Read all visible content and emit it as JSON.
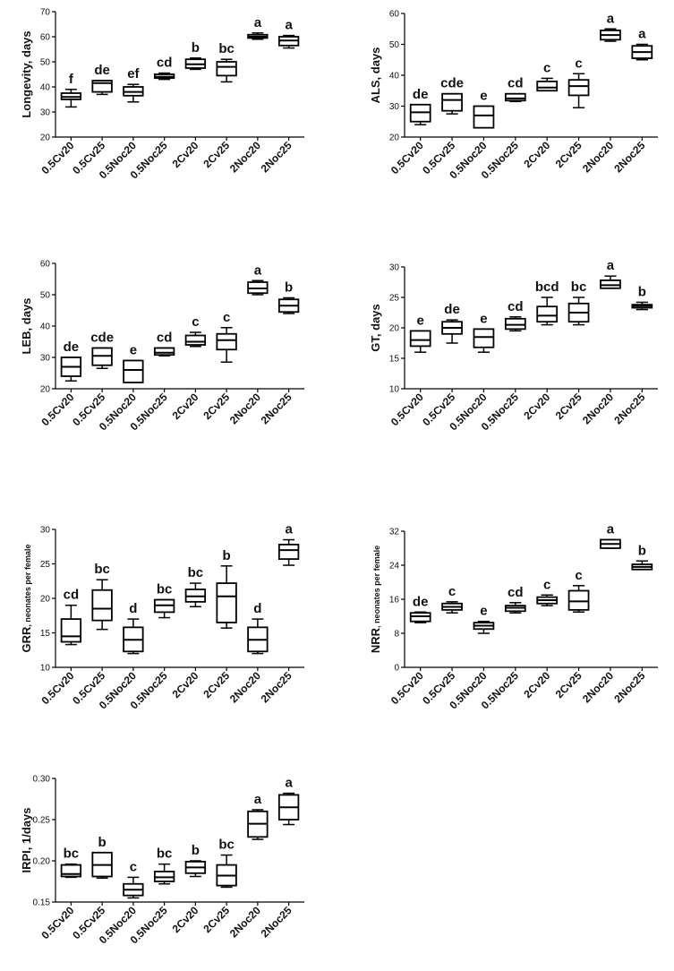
{
  "chart_data": [
    {
      "type": "box",
      "panel": "longevity",
      "ylabel": "Longevity, days",
      "ylabel_unit": "",
      "ylim": [
        20,
        70
      ],
      "yticks": [
        20,
        30,
        40,
        50,
        60,
        70
      ],
      "categories": [
        "0.5Cv20",
        "0.5Cv25",
        "0.5Noc20",
        "0.5Noc25",
        "2Cv20",
        "2Cv25",
        "2Noc20",
        "2Noc25"
      ],
      "boxes": [
        {
          "min": 32,
          "q1": 35,
          "median": 36,
          "q3": 37.5,
          "max": 39
        },
        {
          "min": 37,
          "q1": 38,
          "median": 41.5,
          "q3": 42.5,
          "max": 42.5
        },
        {
          "min": 34,
          "q1": 36.5,
          "median": 38,
          "q3": 40,
          "max": 41
        },
        {
          "min": 43,
          "q1": 43.5,
          "median": 44,
          "q3": 45,
          "max": 45.5
        },
        {
          "min": 47,
          "q1": 47.5,
          "median": 49,
          "q3": 51,
          "max": 51.5
        },
        {
          "min": 42,
          "q1": 44.5,
          "median": 48,
          "q3": 50,
          "max": 51
        },
        {
          "min": 59,
          "q1": 59.5,
          "median": 60,
          "q3": 60.8,
          "max": 61.5
        },
        {
          "min": 55.5,
          "q1": 56.5,
          "median": 58.5,
          "q3": 60,
          "max": 60.5
        }
      ],
      "letters": [
        "f",
        "de",
        "ef",
        "cd",
        "b",
        "bc",
        "a",
        "a"
      ]
    },
    {
      "type": "box",
      "panel": "als",
      "ylabel": "ALS, days",
      "ylabel_unit": "",
      "ylim": [
        20,
        60
      ],
      "yticks": [
        20,
        30,
        40,
        50,
        60
      ],
      "categories": [
        "0.5Cv20",
        "0.5Cv25",
        "0.5Noc20",
        "0.5Noc25",
        "2Cv20",
        "2Cv25",
        "2Noc20",
        "2Noc25"
      ],
      "boxes": [
        {
          "min": 24,
          "q1": 25,
          "median": 28,
          "q3": 30.5,
          "max": 30.5
        },
        {
          "min": 27.5,
          "q1": 28.5,
          "median": 32,
          "q3": 34,
          "max": 34
        },
        {
          "min": 23,
          "q1": 23,
          "median": 27,
          "q3": 30,
          "max": 30
        },
        {
          "min": 31.5,
          "q1": 31.8,
          "median": 32.5,
          "q3": 34,
          "max": 34
        },
        {
          "min": 35,
          "q1": 35,
          "median": 36,
          "q3": 38,
          "max": 39
        },
        {
          "min": 29.5,
          "q1": 33.5,
          "median": 36.5,
          "q3": 38.5,
          "max": 40.5
        },
        {
          "min": 51,
          "q1": 51.5,
          "median": 53,
          "q3": 54.5,
          "max": 55
        },
        {
          "min": 45,
          "q1": 45.5,
          "median": 47.5,
          "q3": 49.5,
          "max": 50
        }
      ],
      "letters": [
        "de",
        "cde",
        "e",
        "cd",
        "c",
        "c",
        "a",
        "a"
      ]
    },
    {
      "type": "box",
      "panel": "leb",
      "ylabel": "LEB, days",
      "ylabel_unit": "",
      "ylim": [
        20,
        60
      ],
      "yticks": [
        20,
        30,
        40,
        50,
        60
      ],
      "categories": [
        "0.5Cv20",
        "0.5Cv25",
        "0.5Noc20",
        "0.5Noc25",
        "2Cv20",
        "2Cv25",
        "2Noc20",
        "2Noc25"
      ],
      "boxes": [
        {
          "min": 22.5,
          "q1": 24,
          "median": 27,
          "q3": 30,
          "max": 30
        },
        {
          "min": 26.5,
          "q1": 27.5,
          "median": 30.5,
          "q3": 33,
          "max": 33
        },
        {
          "min": 22,
          "q1": 22,
          "median": 26,
          "q3": 29,
          "max": 29
        },
        {
          "min": 30.5,
          "q1": 30.8,
          "median": 31.5,
          "q3": 33,
          "max": 33
        },
        {
          "min": 33.5,
          "q1": 34,
          "median": 35,
          "q3": 37,
          "max": 38
        },
        {
          "min": 28.5,
          "q1": 32.5,
          "median": 35.5,
          "q3": 37.5,
          "max": 39.5
        },
        {
          "min": 50,
          "q1": 50.5,
          "median": 52,
          "q3": 54,
          "max": 54.5
        },
        {
          "min": 44,
          "q1": 44.5,
          "median": 46.5,
          "q3": 48.5,
          "max": 49
        }
      ],
      "letters": [
        "de",
        "cde",
        "e",
        "cd",
        "c",
        "c",
        "a",
        "b"
      ]
    },
    {
      "type": "box",
      "panel": "gt",
      "ylabel": "GT, days",
      "ylabel_unit": "",
      "ylim": [
        10,
        30
      ],
      "yticks": [
        10,
        15,
        20,
        25,
        30
      ],
      "categories": [
        "0.5Cv20",
        "0.5Cv25",
        "0.5Noc20",
        "0.5Noc25",
        "2Cv20",
        "2Cv25",
        "2Noc20",
        "2Noc25"
      ],
      "boxes": [
        {
          "min": 16,
          "q1": 17,
          "median": 18,
          "q3": 19.5,
          "max": 19.5
        },
        {
          "min": 17.5,
          "q1": 19,
          "median": 20,
          "q3": 21,
          "max": 21.3
        },
        {
          "min": 16,
          "q1": 16.8,
          "median": 18.5,
          "q3": 19.8,
          "max": 19.8
        },
        {
          "min": 19.5,
          "q1": 19.8,
          "median": 20.5,
          "q3": 21.5,
          "max": 21.8
        },
        {
          "min": 20.5,
          "q1": 21,
          "median": 22,
          "q3": 23.5,
          "max": 25
        },
        {
          "min": 20.5,
          "q1": 21,
          "median": 22.5,
          "q3": 24,
          "max": 25
        },
        {
          "min": 26.5,
          "q1": 26.5,
          "median": 27,
          "q3": 27.8,
          "max": 28.5
        },
        {
          "min": 23,
          "q1": 23.3,
          "median": 23.6,
          "q3": 23.8,
          "max": 24.2
        }
      ],
      "letters": [
        "e",
        "de",
        "e",
        "cd",
        "bcd",
        "bc",
        "a",
        "b"
      ]
    },
    {
      "type": "box",
      "panel": "grr",
      "ylabel": "GRR",
      "ylabel_unit": ", neonates per female",
      "ylim": [
        10,
        30
      ],
      "yticks": [
        10,
        15,
        20,
        25,
        30
      ],
      "categories": [
        "0.5Cv20",
        "0.5Cv25",
        "0.5Noc20",
        "0.5Noc25",
        "2Cv20",
        "2Cv25",
        "2Noc20",
        "2Noc25"
      ],
      "boxes": [
        {
          "min": 13.3,
          "q1": 13.7,
          "median": 14.5,
          "q3": 17,
          "max": 19
        },
        {
          "min": 15.5,
          "q1": 16.8,
          "median": 18.5,
          "q3": 21.2,
          "max": 22.7
        },
        {
          "min": 12,
          "q1": 12.3,
          "median": 14,
          "q3": 15.8,
          "max": 17
        },
        {
          "min": 17.2,
          "q1": 18,
          "median": 19,
          "q3": 19.8,
          "max": 19.8
        },
        {
          "min": 18.8,
          "q1": 19.5,
          "median": 20.3,
          "q3": 21.3,
          "max": 22.2
        },
        {
          "min": 15.7,
          "q1": 16.5,
          "median": 20.3,
          "q3": 22.2,
          "max": 24.7
        },
        {
          "min": 12,
          "q1": 12.3,
          "median": 14,
          "q3": 15.8,
          "max": 17
        },
        {
          "min": 24.8,
          "q1": 25.7,
          "median": 27,
          "q3": 27.8,
          "max": 28.5
        }
      ],
      "letters": [
        "cd",
        "bc",
        "d",
        "bc",
        "bc",
        "b",
        "d",
        "a"
      ]
    },
    {
      "type": "box",
      "panel": "nrr",
      "ylabel": "NRR",
      "ylabel_unit": ", neonates per female",
      "ylim": [
        0,
        32
      ],
      "yticks": [
        0,
        8,
        16,
        24,
        32
      ],
      "categories": [
        "0.5Cv20",
        "0.5Cv25",
        "0.5Noc20",
        "0.5Noc25",
        "2Cv20",
        "2Cv25",
        "2Noc20",
        "2Noc25"
      ],
      "boxes": [
        {
          "min": 10.5,
          "q1": 10.8,
          "median": 12,
          "q3": 12.8,
          "max": 13
        },
        {
          "min": 12.8,
          "q1": 13.5,
          "median": 14.2,
          "q3": 15,
          "max": 15.4
        },
        {
          "min": 8,
          "q1": 9,
          "median": 9.8,
          "q3": 10.5,
          "max": 10.8
        },
        {
          "min": 12.8,
          "q1": 13.2,
          "median": 14,
          "q3": 14.5,
          "max": 15.2
        },
        {
          "min": 14.5,
          "q1": 15,
          "median": 15.8,
          "q3": 16.5,
          "max": 17
        },
        {
          "min": 13,
          "q1": 13.5,
          "median": 15.5,
          "q3": 18,
          "max": 19.2
        },
        {
          "min": 28,
          "q1": 28,
          "median": 29,
          "q3": 30,
          "max": 30
        },
        {
          "min": 23,
          "q1": 23,
          "median": 23.6,
          "q3": 24.2,
          "max": 25
        }
      ],
      "letters": [
        "de",
        "c",
        "e",
        "cd",
        "c",
        "c",
        "a",
        "b"
      ]
    },
    {
      "type": "box",
      "panel": "irpi",
      "ylabel": "IRPI, 1/days",
      "ylabel_unit": "",
      "ylim": [
        0.15,
        0.3
      ],
      "yticks": [
        "0.15",
        "0.20",
        "0.25",
        "0.30"
      ],
      "categories": [
        "0.5Cv20",
        "0.5Cv25",
        "0.5Noc20",
        "0.5Noc25",
        "2Cv20",
        "2Cv25",
        "2Noc20",
        "2Noc25"
      ],
      "boxes": [
        {
          "min": 0.18,
          "q1": 0.181,
          "median": 0.184,
          "q3": 0.195,
          "max": 0.196
        },
        {
          "min": 0.179,
          "q1": 0.181,
          "median": 0.195,
          "q3": 0.21,
          "max": 0.21
        },
        {
          "min": 0.155,
          "q1": 0.158,
          "median": 0.165,
          "q3": 0.172,
          "max": 0.18
        },
        {
          "min": 0.172,
          "q1": 0.175,
          "median": 0.18,
          "q3": 0.187,
          "max": 0.196
        },
        {
          "min": 0.181,
          "q1": 0.185,
          "median": 0.192,
          "q3": 0.199,
          "max": 0.2
        },
        {
          "min": 0.168,
          "q1": 0.17,
          "median": 0.182,
          "q3": 0.195,
          "max": 0.207
        },
        {
          "min": 0.226,
          "q1": 0.229,
          "median": 0.245,
          "q3": 0.26,
          "max": 0.262
        },
        {
          "min": 0.244,
          "q1": 0.25,
          "median": 0.265,
          "q3": 0.28,
          "max": 0.282
        }
      ],
      "letters": [
        "bc",
        "b",
        "c",
        "bc",
        "b",
        "bc",
        "a",
        "a"
      ]
    }
  ]
}
